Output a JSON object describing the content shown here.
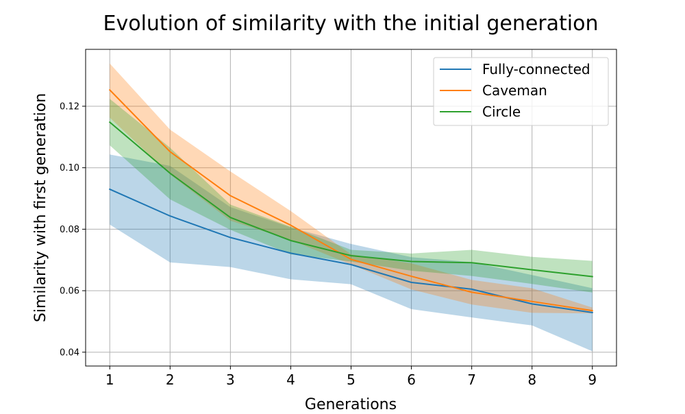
{
  "chart_data": {
    "type": "line",
    "title": "Evolution of similarity with the initial generation",
    "xlabel": "Generations",
    "ylabel": "Similarity with first generation",
    "x": [
      1,
      2,
      3,
      4,
      5,
      6,
      7,
      8,
      9
    ],
    "x_ticks": [
      "1",
      "2",
      "3",
      "4",
      "5",
      "6",
      "7",
      "8",
      "9"
    ],
    "y_ticks": [
      "0.04",
      "0.06",
      "0.08",
      "0.10",
      "0.12"
    ],
    "xlim": [
      0.6,
      9.4
    ],
    "ylim": [
      0.0355,
      0.1385
    ],
    "grid": true,
    "legend_position": "top-right",
    "series": [
      {
        "name": "Fully-connected",
        "color": "#1f77b4",
        "values": [
          0.093,
          0.0843,
          0.0773,
          0.0722,
          0.0685,
          0.0627,
          0.0605,
          0.0557,
          0.0529
        ],
        "lower": [
          0.0815,
          0.0692,
          0.0677,
          0.0637,
          0.0621,
          0.054,
          0.0513,
          0.0487,
          0.0403
        ],
        "upper": [
          0.1043,
          0.1006,
          0.0872,
          0.0806,
          0.0752,
          0.0709,
          0.0693,
          0.0651,
          0.0608
        ]
      },
      {
        "name": "Caveman",
        "color": "#ff7f0e",
        "values": [
          0.1253,
          0.1052,
          0.0909,
          0.0813,
          0.0702,
          0.0647,
          0.0595,
          0.0565,
          0.0535
        ],
        "lower": [
          0.1163,
          0.0978,
          0.0828,
          0.0765,
          0.0685,
          0.0604,
          0.0555,
          0.0528,
          0.0526
        ],
        "upper": [
          0.1339,
          0.1124,
          0.0988,
          0.0859,
          0.0718,
          0.0689,
          0.0635,
          0.0608,
          0.0545
        ]
      },
      {
        "name": "Circle",
        "color": "#2ca02c",
        "values": [
          0.1148,
          0.0982,
          0.0838,
          0.0763,
          0.0714,
          0.0695,
          0.0691,
          0.0668,
          0.0646
        ],
        "lower": [
          0.1073,
          0.0897,
          0.0798,
          0.0718,
          0.0695,
          0.0665,
          0.0648,
          0.0622,
          0.0594
        ],
        "upper": [
          0.1224,
          0.1065,
          0.088,
          0.0808,
          0.0733,
          0.0721,
          0.0733,
          0.071,
          0.0697
        ]
      }
    ]
  }
}
